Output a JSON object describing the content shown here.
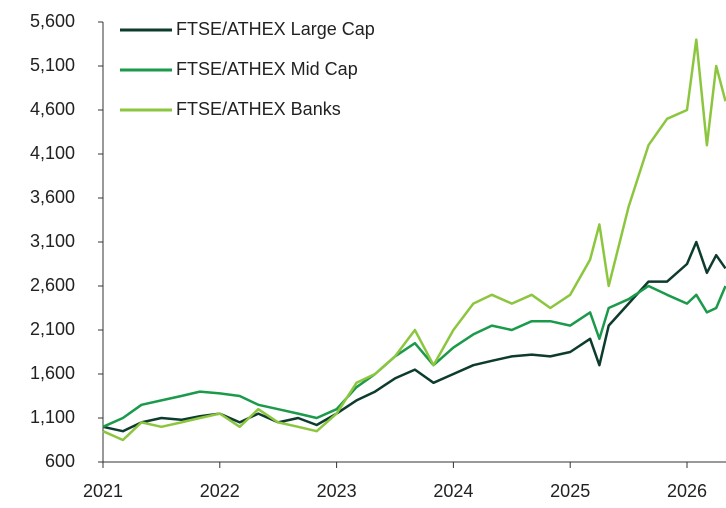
{
  "chart_data": {
    "type": "line",
    "x": [
      2021,
      2021.17,
      2021.33,
      2021.5,
      2021.67,
      2021.83,
      2022,
      2022.17,
      2022.33,
      2022.5,
      2022.67,
      2022.83,
      2023,
      2023.17,
      2023.33,
      2023.5,
      2023.67,
      2023.83,
      2024,
      2024.17,
      2024.33,
      2024.5,
      2024.67,
      2024.83,
      2025,
      2025.17,
      2025.25,
      2025.33,
      2025.5,
      2025.67,
      2025.83,
      2026,
      2026.08,
      2026.17,
      2026.25,
      2026.33
    ],
    "series": [
      {
        "name": "FTSE/ATHEX Large Cap",
        "color": "#0d3b2e",
        "values": [
          1000,
          950,
          1050,
          1100,
          1080,
          1120,
          1150,
          1050,
          1150,
          1050,
          1100,
          1020,
          1150,
          1300,
          1400,
          1550,
          1650,
          1500,
          1600,
          1700,
          1750,
          1800,
          1820,
          1800,
          1850,
          2000,
          1700,
          2150,
          2400,
          2650,
          2650,
          2850,
          3100,
          2750,
          2950,
          2800
        ]
      },
      {
        "name": "FTSE/ATHEX Mid Cap",
        "color": "#1a9a4a",
        "values": [
          1000,
          1100,
          1250,
          1300,
          1350,
          1400,
          1380,
          1350,
          1250,
          1200,
          1150,
          1100,
          1200,
          1450,
          1600,
          1800,
          1950,
          1700,
          1900,
          2050,
          2150,
          2100,
          2200,
          2200,
          2150,
          2300,
          2000,
          2350,
          2450,
          2600,
          2500,
          2400,
          2500,
          2300,
          2350,
          2600
        ]
      },
      {
        "name": "FTSE/ATHEX Banks",
        "color": "#8cc63f",
        "values": [
          950,
          850,
          1050,
          1000,
          1050,
          1100,
          1150,
          1000,
          1200,
          1050,
          1000,
          950,
          1150,
          1500,
          1600,
          1800,
          2100,
          1700,
          2100,
          2400,
          2500,
          2400,
          2500,
          2350,
          2500,
          2900,
          3300,
          2600,
          3500,
          4200,
          4500,
          4600,
          5400,
          4200,
          5100,
          4700
        ]
      }
    ],
    "xlim": [
      2021,
      2026.33
    ],
    "xticks": [
      2021,
      2022,
      2023,
      2024,
      2025,
      2026
    ],
    "ylim": [
      600,
      5600
    ],
    "yticks": [
      600,
      {
        "value": 1100,
        "label": "1,100"
      },
      {
        "value": 1600,
        "label": "1,600"
      },
      {
        "value": 2100,
        "label": "2,100"
      },
      {
        "value": 2600,
        "label": "2,600"
      },
      {
        "value": 3100,
        "label": "3,100"
      },
      {
        "value": 3600,
        "label": "3,600"
      },
      {
        "value": 4100,
        "label": "4,100"
      },
      {
        "value": 4600,
        "label": "4,600"
      },
      {
        "value": 5100,
        "label": "5,100"
      },
      {
        "value": 5600,
        "label": "5,600"
      }
    ],
    "grid": false,
    "legend": "upper left"
  }
}
